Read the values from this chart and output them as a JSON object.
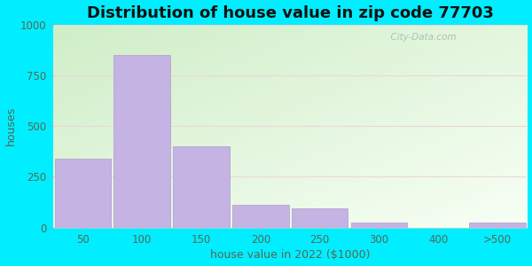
{
  "title": "Distribution of house value in zip code 77703",
  "xlabel": "house value in 2022 ($1000)",
  "ylabel": "houses",
  "categories": [
    "50",
    "100",
    "150",
    "200",
    "250",
    "300",
    "400",
    ">500"
  ],
  "values": [
    340,
    850,
    400,
    110,
    95,
    25,
    0,
    25
  ],
  "bar_color": "#c5b3e3",
  "bar_edgecolor": "#b09ad0",
  "ylim": [
    0,
    1000
  ],
  "yticks": [
    0,
    250,
    500,
    750,
    1000
  ],
  "bg_outer": "#00eeff",
  "title_fontsize": 13,
  "axis_label_fontsize": 9,
  "tick_fontsize": 8.5,
  "watermark": "  City-Data.com",
  "watermark_color": "#a0b8b4",
  "grid_color": "#ddeecc",
  "label_color": "#556655"
}
